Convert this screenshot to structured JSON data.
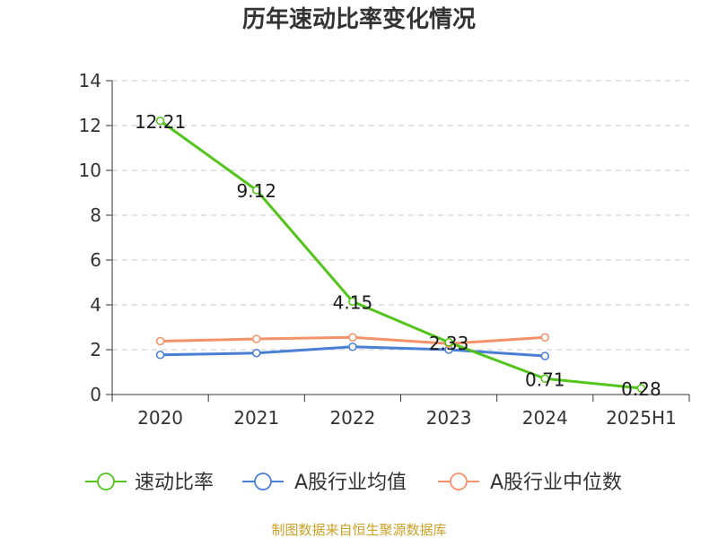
{
  "chart_data": {
    "type": "line",
    "title": "历年速动比率变化情况",
    "categories": [
      "2020",
      "2021",
      "2022",
      "2023",
      "2024",
      "2025H1"
    ],
    "ylim": [
      0,
      14
    ],
    "yticks": [
      0,
      2,
      4,
      6,
      8,
      10,
      12,
      14
    ],
    "grid": true,
    "legend_position": "bottom",
    "series": [
      {
        "name": "速动比率",
        "color": "#52c41a",
        "values": [
          12.21,
          9.12,
          4.15,
          2.33,
          0.71,
          0.28
        ],
        "labels": [
          "12.21",
          "9.12",
          "4.15",
          "2.33",
          "0.71",
          "0.28"
        ]
      },
      {
        "name": "A股行业均值",
        "color": "#4a7fd6",
        "values": [
          1.77,
          1.85,
          2.13,
          2.0,
          1.72,
          null
        ]
      },
      {
        "name": "A股行业中位数",
        "color": "#f5926a",
        "values": [
          2.38,
          2.48,
          2.55,
          2.27,
          2.55,
          null
        ]
      }
    ]
  },
  "footer": {
    "source": "制图数据来自恒生聚源数据库"
  }
}
